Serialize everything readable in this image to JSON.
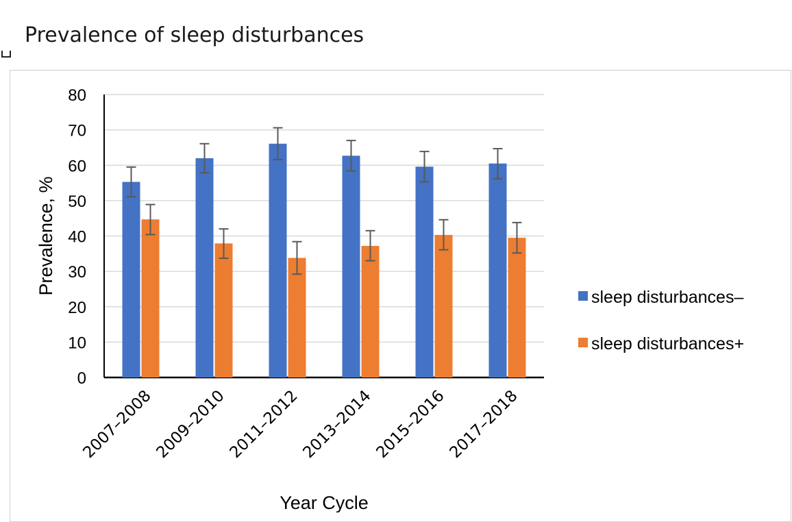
{
  "page": {
    "title": "Prevalence of sleep disturbances"
  },
  "chart_data": {
    "type": "bar",
    "title": "Prevalence of sleep disturbances",
    "xlabel": "Year Cycle",
    "ylabel": "Prevalence, %",
    "ylim": [
      0,
      80
    ],
    "yticks": [
      0,
      10,
      20,
      30,
      40,
      50,
      60,
      70,
      80
    ],
    "grid": true,
    "legend_position": "right",
    "categories": [
      "2007–2008",
      "2009–2010",
      "2011–2012",
      "2013–2014",
      "2015–2016",
      "2017–2018"
    ],
    "series": [
      {
        "name": "sleep disturbances–",
        "color": "#4472c4",
        "values": [
          55.3,
          62.0,
          66.1,
          62.7,
          59.6,
          60.5
        ],
        "error_low": [
          51.1,
          57.9,
          61.6,
          58.4,
          55.3,
          56.2
        ],
        "error_high": [
          59.5,
          66.1,
          70.6,
          67.0,
          63.9,
          64.7
        ]
      },
      {
        "name": "sleep disturbances+",
        "color": "#ed7d31",
        "values": [
          44.7,
          37.9,
          33.8,
          37.2,
          40.3,
          39.5
        ],
        "error_low": [
          40.4,
          33.7,
          29.2,
          33.0,
          36.1,
          35.2
        ],
        "error_high": [
          48.9,
          42.0,
          38.4,
          41.5,
          44.6,
          43.8
        ]
      }
    ]
  }
}
